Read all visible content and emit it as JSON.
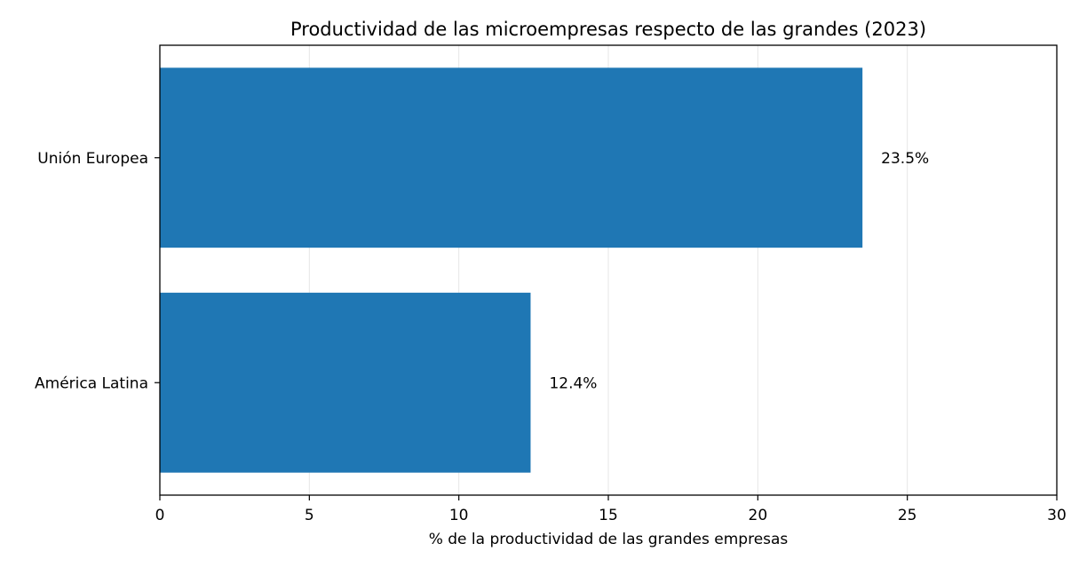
{
  "chart_data": {
    "type": "bar",
    "orientation": "horizontal",
    "title": "Productividad de las microempresas respecto de las grandes (2023)",
    "xlabel": "% de la productividad de las grandes empresas",
    "ylabel": "",
    "categories": [
      "Unión Europea",
      "América Latina"
    ],
    "values": [
      23.5,
      12.4
    ],
    "value_labels": [
      "23.5%",
      "12.4%"
    ],
    "xlim": [
      0,
      30
    ],
    "x_ticks": [
      0,
      5,
      10,
      15,
      20,
      25,
      30
    ],
    "x_tick_labels": [
      "0",
      "5",
      "10",
      "15",
      "20",
      "25",
      "30"
    ],
    "grid": "vertical",
    "legend": "none",
    "colors": {
      "bar": "#1f77b4",
      "grid": "#e6e6e6",
      "axis": "#000000"
    }
  }
}
